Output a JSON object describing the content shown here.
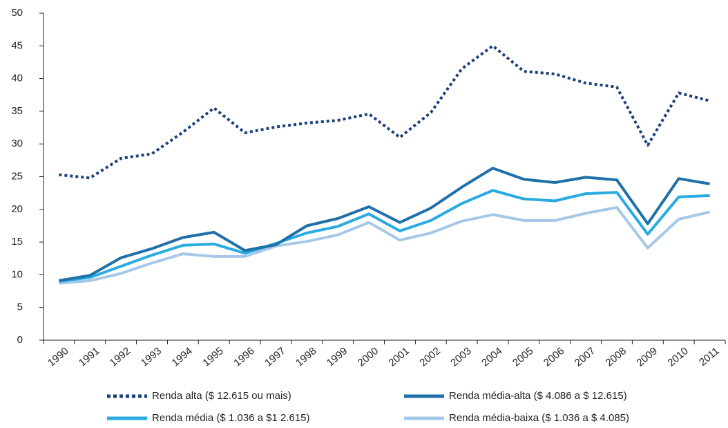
{
  "chart_data": {
    "type": "line",
    "categories": [
      "1990",
      "1991",
      "1992",
      "1993",
      "1994",
      "1995",
      "1996",
      "1997",
      "1998",
      "1999",
      "2000",
      "2001",
      "2002",
      "2003",
      "2004",
      "2005",
      "2006",
      "2007",
      "2008",
      "2009",
      "2010",
      "2011"
    ],
    "ylim": [
      0,
      50
    ],
    "yticks": [
      0,
      5,
      10,
      15,
      20,
      25,
      30,
      35,
      40,
      45,
      50
    ],
    "series": [
      {
        "name": "Renda alta ($ 12.615 ou mais)",
        "color": "#1b3f7a",
        "dashed": true,
        "values": [
          25.3,
          24.8,
          27.8,
          28.5,
          31.8,
          35.5,
          31.7,
          32.6,
          33.2,
          33.6,
          34.6,
          31.0,
          34.8,
          41.5,
          45.0,
          41.1,
          40.7,
          39.3,
          38.7,
          29.8,
          37.8,
          36.6
        ]
      },
      {
        "name": "Renda média-alta ($ 4.086 a $ 12.615)",
        "color": "#1f6fa8",
        "dashed": false,
        "values": [
          9.1,
          9.9,
          12.6,
          14.0,
          15.7,
          16.5,
          13.7,
          14.6,
          17.5,
          18.6,
          20.4,
          18.0,
          20.2,
          23.4,
          26.3,
          24.6,
          24.1,
          24.9,
          24.5,
          17.8,
          24.7,
          23.9
        ]
      },
      {
        "name": "Renda média ($ 1.036 a $1 2.615)",
        "color": "#29abe2",
        "dashed": false,
        "values": [
          9.0,
          9.6,
          11.3,
          13.0,
          14.5,
          14.7,
          13.3,
          14.8,
          16.4,
          17.4,
          19.3,
          16.7,
          18.3,
          20.9,
          22.9,
          21.6,
          21.3,
          22.4,
          22.6,
          16.2,
          21.9,
          22.1
        ]
      },
      {
        "name": "Renda média-baixa ($ 1.036 a $ 4.085)",
        "color": "#a6c8e8",
        "dashed": false,
        "values": [
          8.7,
          9.1,
          10.2,
          11.8,
          13.2,
          12.8,
          12.8,
          14.4,
          15.1,
          16.1,
          18.0,
          15.3,
          16.4,
          18.2,
          19.2,
          18.3,
          18.3,
          19.4,
          20.3,
          14.1,
          18.5,
          19.6
        ]
      }
    ]
  }
}
